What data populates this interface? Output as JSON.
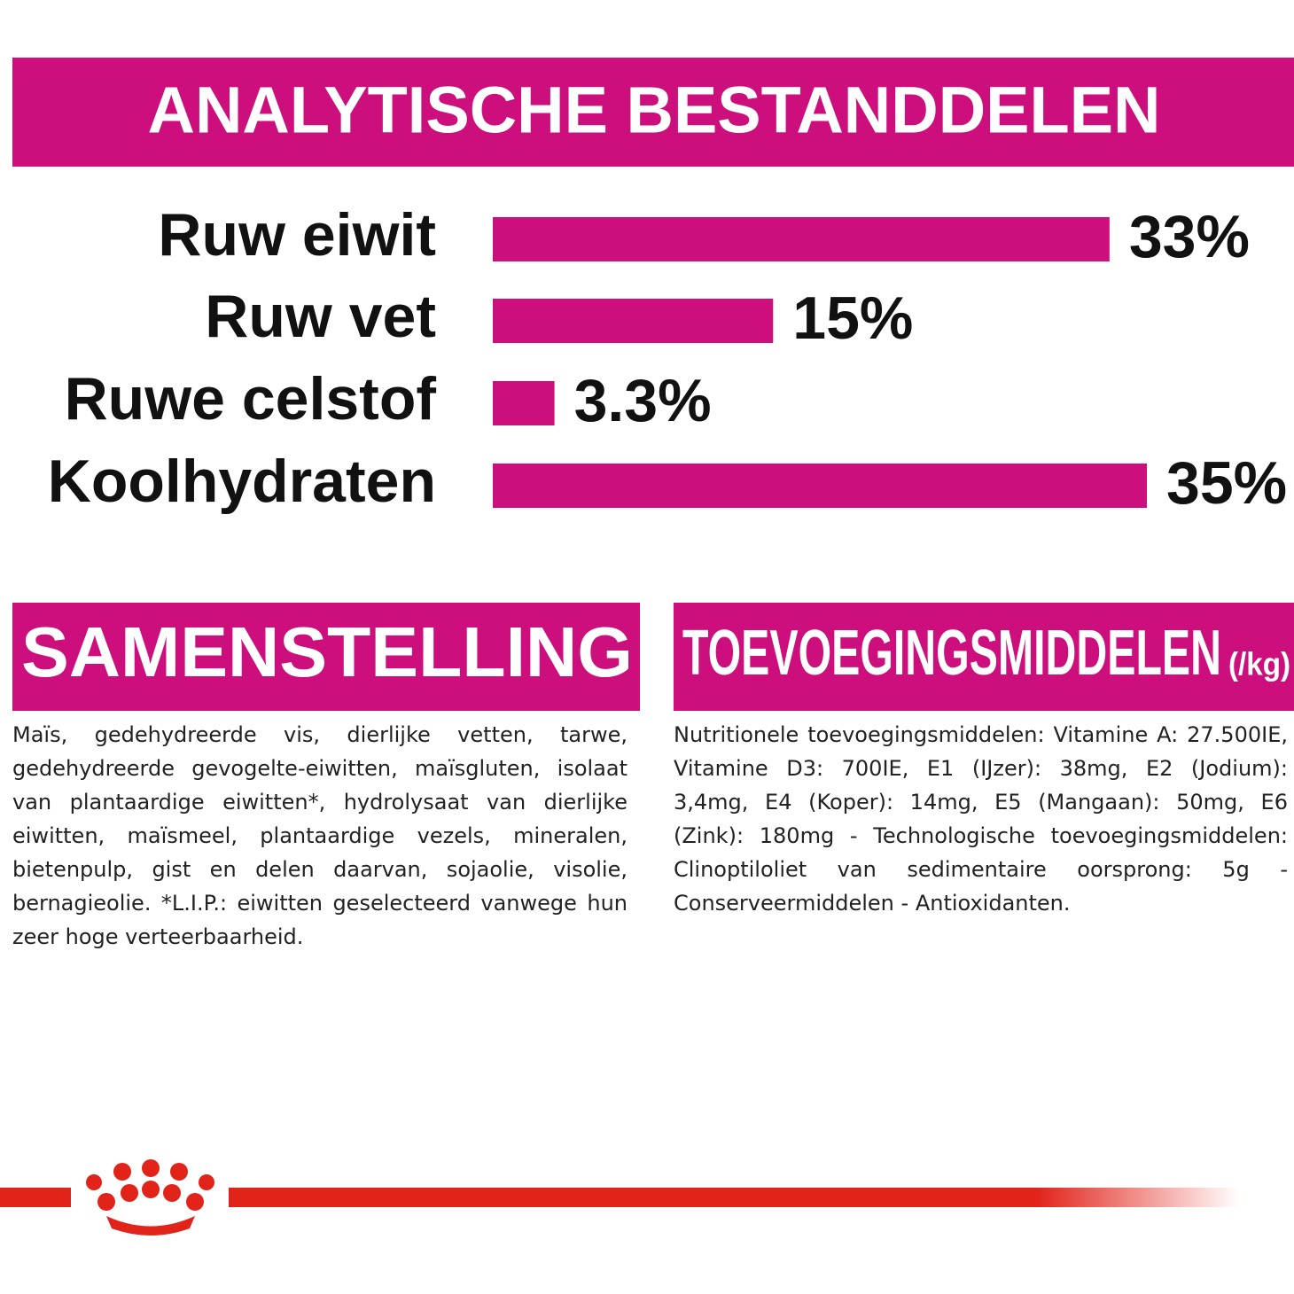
{
  "chart_data": {
    "type": "bar",
    "orientation": "horizontal",
    "title": "ANALYTISCHE BESTANDDELEN",
    "categories": [
      "Ruw eiwit",
      "Ruw vet",
      "Ruwe celstof",
      "Koolhydraten"
    ],
    "values": [
      33,
      15,
      3.3,
      35
    ],
    "value_labels": [
      "33%",
      "15%",
      "3.3%",
      "35%"
    ],
    "color": "#cc0f7c"
  },
  "composition": {
    "title": "SAMENSTELLING",
    "text": "Maïs, gedehydreerde vis, dierlijke vetten, tarwe, gedehydreerde gevogelte-eiwitten, maïsgluten, isolaat van plantaardige eiwitten*, hydrolysaat van dierlijke eiwitten, maïsmeel, plantaardige vezels, mineralen, bietenpulp, gist en delen daarvan, sojaolie, visolie, bernagieolie. *L.I.P.: eiwitten geselecteerd vanwege hun zeer hoge verteerbaarheid."
  },
  "additives": {
    "title": "TOEVOEGINGSMIDDELEN",
    "unit": "(/kg)",
    "text": "Nutritionele toevoegingsmiddelen: Vitamine A: 27.500IE, Vitamine D3: 700IE, E1 (IJzer): 38mg, E2 (Jodium): 3,4mg, E4 (Koper): 14mg, E5 (Mangaan): 50mg, E6 (Zink): 180mg - Technologische toevoegingsmiddelen: Clinoptiloliet van sedimentaire oorsprong: 5g - Conserveermiddelen - Antioxidanten."
  }
}
